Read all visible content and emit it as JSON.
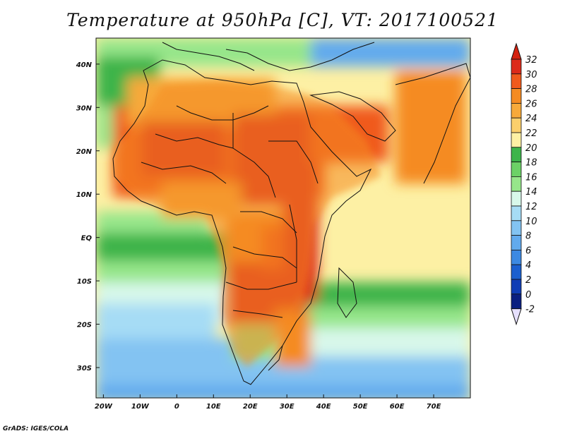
{
  "title": "Temperature at 950hPa [C], VT: 2017100521",
  "credit": "GrADS: IGES/COLA",
  "map": {
    "projection": "latlon",
    "lon_range": [
      -22,
      80
    ],
    "lat_range": [
      -37,
      46
    ],
    "y_ticks": [
      {
        "lat": 40,
        "label": "40N"
      },
      {
        "lat": 30,
        "label": "30N"
      },
      {
        "lat": 20,
        "label": "20N"
      },
      {
        "lat": 10,
        "label": "10N"
      },
      {
        "lat": 0,
        "label": "EQ"
      },
      {
        "lat": -10,
        "label": "10S"
      },
      {
        "lat": -20,
        "label": "20S"
      },
      {
        "lat": -30,
        "label": "30S"
      }
    ],
    "x_ticks": [
      {
        "lon": -20,
        "label": "20W"
      },
      {
        "lon": -10,
        "label": "10W"
      },
      {
        "lon": 0,
        "label": "0"
      },
      {
        "lon": 10,
        "label": "10E"
      },
      {
        "lon": 20,
        "label": "20E"
      },
      {
        "lon": 30,
        "label": "30E"
      },
      {
        "lon": 40,
        "label": "40E"
      },
      {
        "lon": 50,
        "label": "50E"
      },
      {
        "lon": 60,
        "label": "60E"
      },
      {
        "lon": 70,
        "label": "70E"
      }
    ]
  },
  "colorbar": {
    "labels": [
      "32",
      "30",
      "28",
      "26",
      "24",
      "22",
      "20",
      "18",
      "16",
      "14",
      "12",
      "10",
      "8",
      "6",
      "4",
      "2",
      "0",
      "-2"
    ],
    "colors": [
      "#dc2a1a",
      "#f05a1c",
      "#f58b22",
      "#f7a93a",
      "#fbcf6c",
      "#fdf0a4",
      "#3cb44a",
      "#6cd166",
      "#96e68a",
      "#d8f8ea",
      "#a6dcf5",
      "#83c3f2",
      "#62aaed",
      "#3c89e2",
      "#1b5fcf",
      "#0f3db5",
      "#0a1f80"
    ],
    "top_arrow_color": "#d52210",
    "bottom_arrow_color": "#e6e0ff"
  }
}
